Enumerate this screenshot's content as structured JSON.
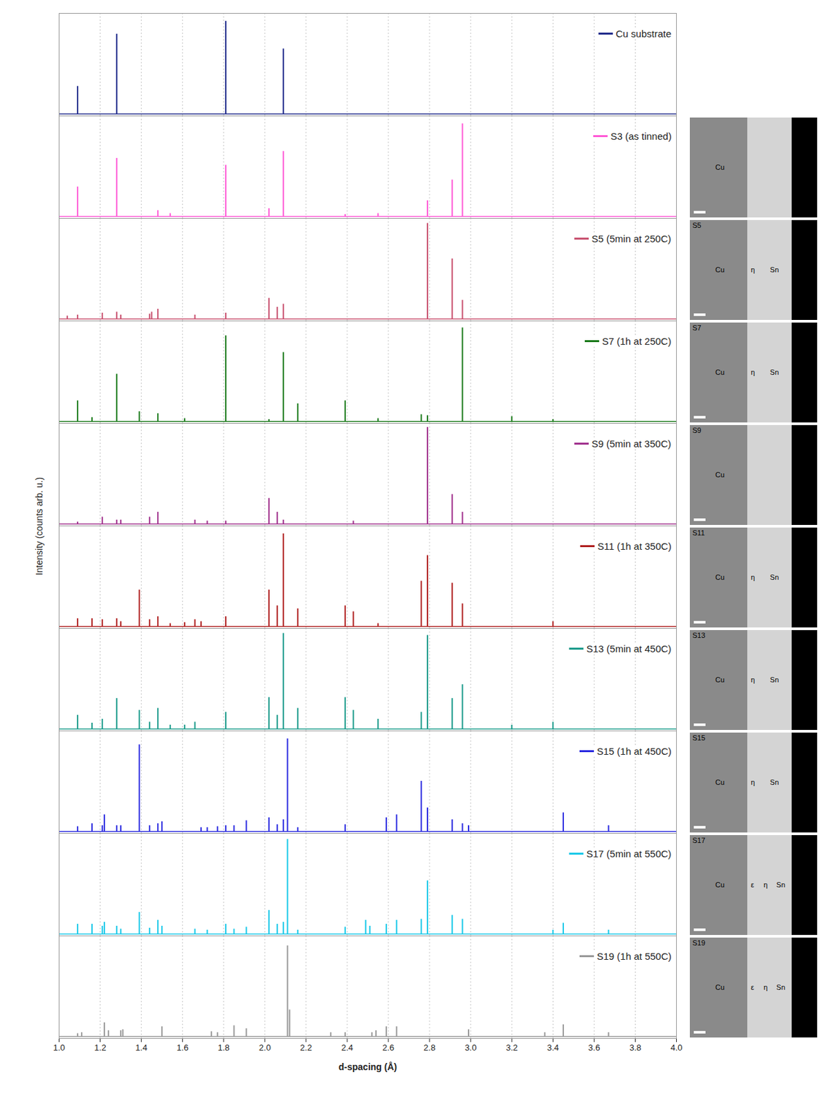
{
  "chart_data": {
    "type": "stem",
    "x_label": "d-spacing (Å)",
    "y_label": "Intensity (counts arb. u.)",
    "xlim": [
      1.0,
      4.0
    ],
    "xticks": [
      {
        "value": 1.0,
        "label": "1.0"
      },
      {
        "value": 1.2,
        "label": "1.2"
      },
      {
        "value": 1.4,
        "label": "1.4"
      },
      {
        "value": 1.6,
        "label": "1.6"
      },
      {
        "value": 1.8,
        "label": "1.8"
      },
      {
        "value": 2.0,
        "label": "2.0"
      },
      {
        "value": 2.2,
        "label": "2.2"
      },
      {
        "value": 2.4,
        "label": "2.4"
      },
      {
        "value": 2.6,
        "label": "2.6"
      },
      {
        "value": 2.8,
        "label": "2.8"
      },
      {
        "value": 3.0,
        "label": "3.0"
      },
      {
        "value": 3.2,
        "label": "3.2"
      },
      {
        "value": 3.4,
        "label": "3.4"
      },
      {
        "value": 3.6,
        "label": "3.6"
      },
      {
        "value": 3.8,
        "label": "3.8"
      },
      {
        "value": 4.0,
        "label": "4.0"
      }
    ],
    "ylim": [
      0,
      100
    ],
    "grid": true,
    "tick_labels": "x",
    "legend": "top-right",
    "series": [
      {
        "name": "Cu substrate",
        "color": "#1f2a8a",
        "x": [
          1.09,
          1.28,
          1.81,
          2.09
        ],
        "values": [
          28,
          81,
          94,
          66
        ]
      },
      {
        "name": "S3 (as tinned)",
        "color": "#ff5ad6",
        "x": [
          1.09,
          1.28,
          1.48,
          1.54,
          1.81,
          2.02,
          2.09,
          2.39,
          2.55,
          2.79,
          2.91,
          2.96
        ],
        "values": [
          30,
          59,
          6,
          3,
          52,
          8,
          66,
          2,
          3,
          16,
          37,
          94
        ],
        "micrograph": {
          "labels": [
            "Cu"
          ]
        }
      },
      {
        "name": "S5 (5min at 250C)",
        "color": "#c8506e",
        "x": [
          1.04,
          1.09,
          1.21,
          1.28,
          1.3,
          1.44,
          1.45,
          1.48,
          1.66,
          1.81,
          2.02,
          2.06,
          2.09,
          2.79,
          2.91,
          2.96
        ],
        "values": [
          3,
          4,
          6,
          7,
          4,
          5,
          7,
          10,
          4,
          6,
          21,
          12,
          15,
          97,
          61,
          19
        ],
        "micrograph": {
          "tag": "S5",
          "labels": [
            "Cu",
            "η",
            "Sn"
          ]
        }
      },
      {
        "name": "S7 (1h at 250C)",
        "color": "#1a7a1a",
        "x": [
          1.09,
          1.16,
          1.28,
          1.39,
          1.48,
          1.61,
          1.81,
          2.02,
          2.09,
          2.16,
          2.39,
          2.55,
          2.76,
          2.79,
          2.96,
          3.2,
          3.4
        ],
        "values": [
          21,
          4,
          48,
          10,
          8,
          3,
          87,
          2,
          70,
          18,
          21,
          3,
          7,
          6,
          95,
          5,
          2
        ],
        "micrograph": {
          "tag": "S7",
          "labels": [
            "Cu",
            "η",
            "Sn"
          ]
        }
      },
      {
        "name": "S9 (5min at 350C)",
        "color": "#a0308c",
        "x": [
          1.09,
          1.21,
          1.28,
          1.3,
          1.44,
          1.48,
          1.66,
          1.72,
          1.81,
          2.02,
          2.06,
          2.09,
          2.43,
          2.79,
          2.91,
          2.96
        ],
        "values": [
          2,
          7,
          4,
          4,
          7,
          12,
          4,
          3,
          3,
          26,
          12,
          4,
          3,
          98,
          30,
          12
        ],
        "micrograph": {
          "tag": "S9",
          "labels": [
            "Cu"
          ]
        }
      },
      {
        "name": "S11 (1h at 350C)",
        "color": "#b02020",
        "x": [
          1.09,
          1.16,
          1.21,
          1.28,
          1.3,
          1.39,
          1.44,
          1.48,
          1.54,
          1.61,
          1.66,
          1.69,
          1.81,
          2.02,
          2.06,
          2.09,
          2.16,
          2.39,
          2.43,
          2.55,
          2.76,
          2.79,
          2.91,
          2.96,
          3.4
        ],
        "values": [
          8,
          8,
          7,
          8,
          5,
          37,
          7,
          10,
          3,
          4,
          7,
          5,
          10,
          37,
          21,
          94,
          18,
          21,
          15,
          3,
          46,
          72,
          44,
          23,
          5
        ],
        "micrograph": {
          "tag": "S11",
          "labels": [
            "Cu",
            "η",
            "Sn"
          ]
        }
      },
      {
        "name": "S13 (5min at 450C)",
        "color": "#1a9a8a",
        "x": [
          1.09,
          1.16,
          1.21,
          1.28,
          1.39,
          1.44,
          1.48,
          1.54,
          1.61,
          1.66,
          1.81,
          2.02,
          2.06,
          2.09,
          2.16,
          2.39,
          2.43,
          2.55,
          2.76,
          2.79,
          2.91,
          2.96,
          3.2,
          3.4
        ],
        "values": [
          14,
          6,
          10,
          31,
          19,
          7,
          21,
          4,
          4,
          7,
          17,
          32,
          14,
          97,
          21,
          32,
          19,
          10,
          17,
          95,
          31,
          45,
          4,
          7
        ],
        "micrograph": {
          "tag": "S13",
          "labels": [
            "Cu",
            "η",
            "Sn"
          ]
        }
      },
      {
        "name": "S15 (1h at 450C)",
        "color": "#2a2ae0",
        "x": [
          1.09,
          1.16,
          1.21,
          1.22,
          1.28,
          1.3,
          1.39,
          1.44,
          1.48,
          1.5,
          1.69,
          1.72,
          1.77,
          1.81,
          1.85,
          1.91,
          2.02,
          2.06,
          2.09,
          2.11,
          2.16,
          2.39,
          2.59,
          2.64,
          2.76,
          2.79,
          2.91,
          2.96,
          2.99,
          3.45,
          3.67
        ],
        "values": [
          5,
          8,
          6,
          17,
          6,
          6,
          88,
          6,
          8,
          10,
          4,
          4,
          5,
          6,
          6,
          11,
          14,
          7,
          12,
          94,
          4,
          7,
          14,
          17,
          51,
          24,
          12,
          8,
          6,
          19,
          6
        ],
        "micrograph": {
          "tag": "S15",
          "labels": [
            "Cu",
            "η",
            "Sn"
          ]
        }
      },
      {
        "name": "S17 (5min at 550C)",
        "color": "#18c8e8",
        "x": [
          1.09,
          1.16,
          1.21,
          1.22,
          1.28,
          1.3,
          1.39,
          1.44,
          1.48,
          1.5,
          1.66,
          1.72,
          1.81,
          1.85,
          1.91,
          2.02,
          2.06,
          2.09,
          2.11,
          2.16,
          2.39,
          2.49,
          2.51,
          2.59,
          2.64,
          2.76,
          2.79,
          2.91,
          2.96,
          3.4,
          3.45,
          3.67
        ],
        "values": [
          10,
          10,
          8,
          12,
          8,
          5,
          22,
          6,
          14,
          8,
          5,
          4,
          10,
          5,
          7,
          24,
          10,
          12,
          96,
          4,
          7,
          14,
          8,
          10,
          14,
          15,
          54,
          19,
          15,
          4,
          11,
          4
        ],
        "micrograph": {
          "tag": "S17",
          "labels": [
            "Cu",
            "ε",
            "η",
            "Sn"
          ]
        }
      },
      {
        "name": "S19 (1h at 550C)",
        "color": "#999999",
        "x": [
          1.09,
          1.11,
          1.22,
          1.24,
          1.3,
          1.31,
          1.5,
          1.74,
          1.77,
          1.85,
          1.91,
          2.11,
          2.12,
          2.32,
          2.39,
          2.52,
          2.54,
          2.59,
          2.64,
          2.99,
          3.36,
          3.45,
          3.67
        ],
        "values": [
          3,
          4,
          14,
          6,
          6,
          7,
          10,
          5,
          4,
          11,
          8,
          92,
          27,
          4,
          4,
          4,
          6,
          10,
          10,
          7,
          4,
          12,
          4
        ],
        "micrograph": {
          "tag": "S19",
          "labels": [
            "Cu",
            "ε",
            "η",
            "Sn"
          ]
        }
      }
    ]
  }
}
